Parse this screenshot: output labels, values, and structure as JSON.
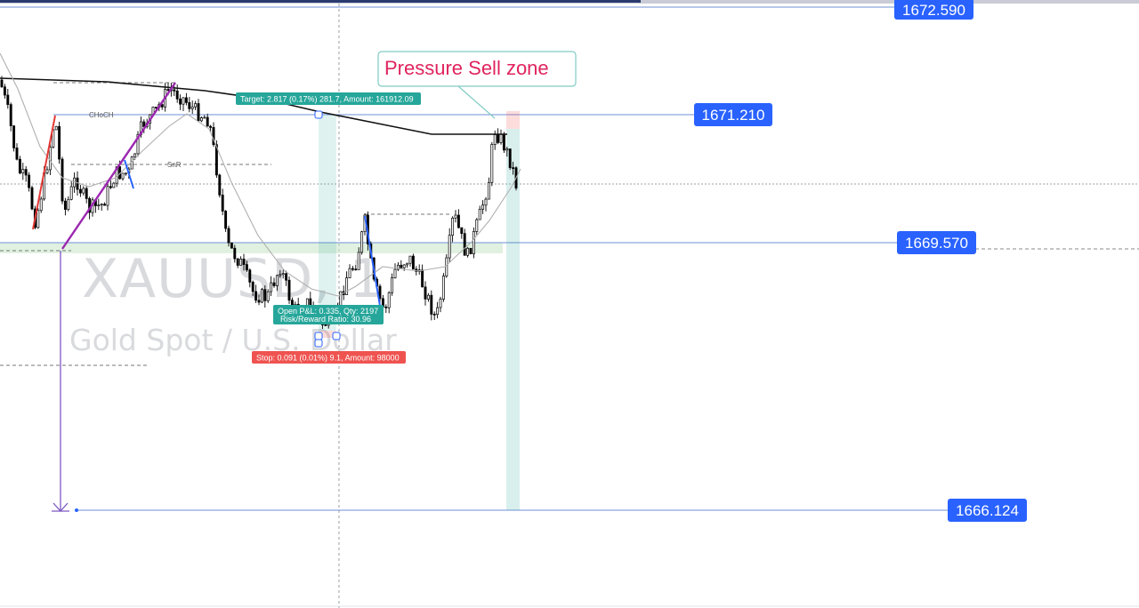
{
  "chart_data": {
    "type": "candlestick",
    "symbol_watermark": "XAUUSD, 1",
    "symbol_description": "Gold Spot / U.S. Dollar",
    "price_labels": [
      {
        "value": "1672.590",
        "color": "#2962ff"
      },
      {
        "value": "1671.210",
        "color": "#2962ff"
      },
      {
        "value": "1669.570",
        "color": "#2962ff"
      },
      {
        "value": "1666.124",
        "color": "#2962ff"
      }
    ],
    "structure_labels": [
      "CHoCH",
      "SnR"
    ],
    "annotation": "Pressure Sell zone",
    "position": {
      "target": "Target: 2.817 (0.17%) 281.7, Amount: 161912.09",
      "open": "Open P&L: 0.335, Qty: 2197",
      "rr": "Risk/Reward Ratio: 30.96",
      "stop": "Stop: 0.091 (0.01%) 9.1, Amount: 98000"
    },
    "colors": {
      "up": "#ffffff",
      "down": "#000000",
      "target_zone": "#26a69a",
      "stop_zone": "#ef5350",
      "label_bg": "#2962ff",
      "trend": "#9c27b0",
      "ma_slow": "#111111",
      "ma_fast": "#b0b0b0"
    }
  }
}
